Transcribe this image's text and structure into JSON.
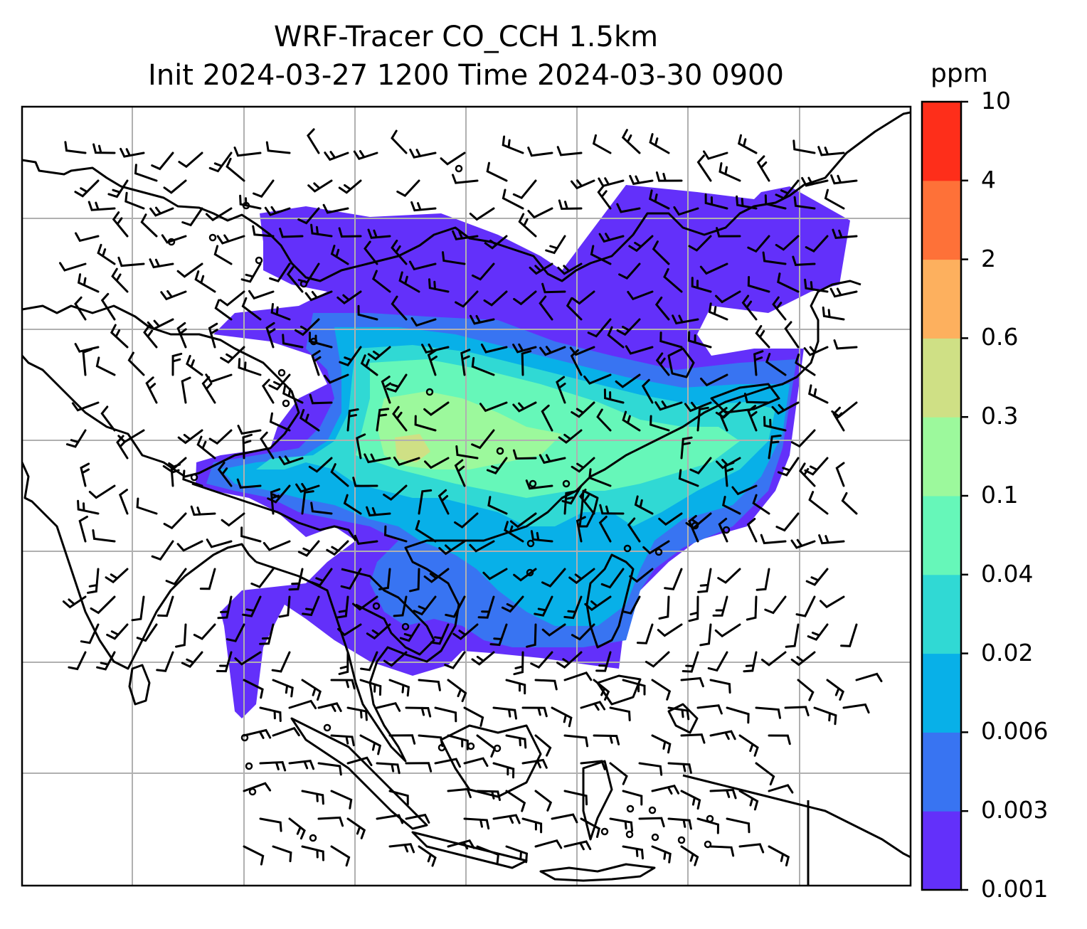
{
  "title_line1": "WRF-Tracer CO_CCH 1.5km",
  "title_line2": "Init 2024-03-27 1200 Time 2024-03-30 0900",
  "colorbar": {
    "unit": "ppm",
    "levels": [
      "0.001",
      "0.003",
      "0.006",
      "0.02",
      "0.04",
      "0.1",
      "0.3",
      "0.6",
      "2",
      "4",
      "10"
    ],
    "colors": [
      "#6330fa",
      "#3874f2",
      "#08b0e8",
      "#30d9d4",
      "#66f7b9",
      "#9cf99c",
      "#cfe085",
      "#fdb05e",
      "#fe7138",
      "#fe2e1a"
    ]
  },
  "map": {
    "field": "CO_CCH tracer concentration",
    "overlay": "wind barbs",
    "gridlines": true,
    "coastlines": true
  }
}
